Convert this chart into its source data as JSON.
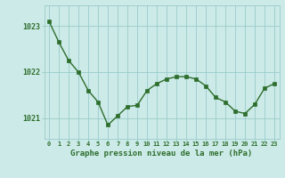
{
  "hours": [
    0,
    1,
    2,
    3,
    4,
    5,
    6,
    7,
    8,
    9,
    10,
    11,
    12,
    13,
    14,
    15,
    16,
    17,
    18,
    19,
    20,
    21,
    22,
    23
  ],
  "pressure": [
    1023.1,
    1022.65,
    1022.25,
    1022.0,
    1021.6,
    1021.35,
    1020.85,
    1021.05,
    1021.25,
    1021.28,
    1021.6,
    1021.75,
    1021.85,
    1021.9,
    1021.9,
    1021.85,
    1021.7,
    1021.45,
    1021.35,
    1021.15,
    1021.1,
    1021.3,
    1021.65,
    1021.75
  ],
  "line_color": "#2d6e2d",
  "marker_color": "#2d6e2d",
  "bg_color": "#cceae7",
  "grid_color": "#99cccc",
  "xlabel": "Graphe pression niveau de la mer (hPa)",
  "xlabel_color": "#2d6e2d",
  "tick_color": "#2d6e2d",
  "ytick_labels": [
    "1021",
    "1022",
    "1023"
  ],
  "ytick_values": [
    1021,
    1022,
    1023
  ],
  "ylim": [
    1020.55,
    1023.45
  ],
  "xlim": [
    -0.5,
    23.5
  ]
}
